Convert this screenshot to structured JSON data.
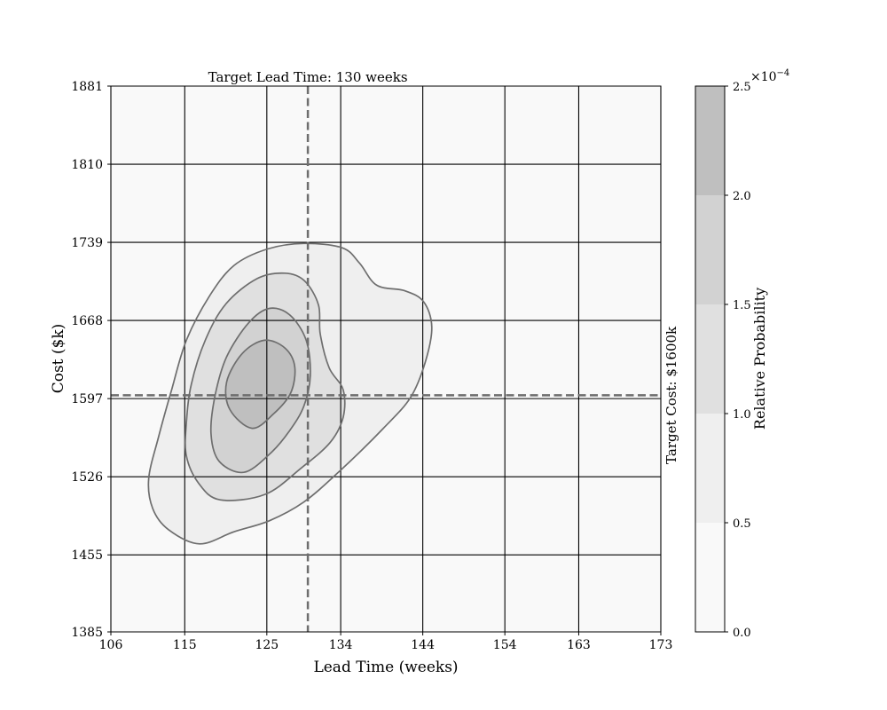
{
  "chart_data": {
    "type": "heatmap",
    "subtype": "filled-contour",
    "xlabel": "Lead Time (weeks)",
    "ylabel": "Cost ($k)",
    "x_ticks": [
      106,
      115,
      125,
      134,
      144,
      154,
      163,
      173
    ],
    "y_ticks": [
      1385,
      1455,
      1526,
      1597,
      1668,
      1739,
      1810,
      1881
    ],
    "xlim": [
      106,
      173
    ],
    "ylim": [
      1385,
      1881
    ],
    "grid": true,
    "grid_color": "#000000",
    "contour_line_color": "#6e6e6e",
    "colorbar": {
      "label": "Relative Probability",
      "levels": [
        0.0,
        0.5,
        1.0,
        1.5,
        2.0,
        2.5
      ],
      "tick_labels": [
        "0.0",
        "0.5",
        "1.0",
        "1.5",
        "2.0",
        "2.5"
      ],
      "scale_label": "×10",
      "scale_exponent": "−4",
      "colors": [
        "#f9f9f9",
        "#efefef",
        "#e0e0e0",
        "#d2d2d2",
        "#bfbfbf"
      ]
    },
    "reference_lines": [
      {
        "orientation": "vertical",
        "value": 130,
        "label": "Target Lead Time: 130 weeks",
        "color": "#6e6e6e",
        "style": "dashed"
      },
      {
        "orientation": "horizontal",
        "value": 1600,
        "label": "Target Cost: $1600k",
        "color": "#6e6e6e",
        "style": "dashed"
      }
    ],
    "contours": [
      {
        "level": 0.5,
        "points": [
          [
            116.8,
            1465
          ],
          [
            113,
            1478
          ],
          [
            111.1,
            1497
          ],
          [
            110.6,
            1524
          ],
          [
            111.8,
            1562
          ],
          [
            113.4,
            1605
          ],
          [
            115.2,
            1650
          ],
          [
            118,
            1690
          ],
          [
            121,
            1718
          ],
          [
            125.1,
            1733
          ],
          [
            129.5,
            1738
          ],
          [
            134.2,
            1734
          ],
          [
            136.3,
            1720
          ],
          [
            138.4,
            1700
          ],
          [
            141.8,
            1695
          ],
          [
            144.1,
            1685
          ],
          [
            145.1,
            1662
          ],
          [
            144.3,
            1630
          ],
          [
            142.5,
            1598
          ],
          [
            139.2,
            1570
          ],
          [
            134,
            1532
          ],
          [
            129.5,
            1503
          ],
          [
            125.3,
            1486
          ],
          [
            121,
            1476
          ]
        ]
      },
      {
        "level": 1.0,
        "points": [
          [
            119.3,
            1505
          ],
          [
            116.7,
            1520
          ],
          [
            115.2,
            1545
          ],
          [
            115.2,
            1575
          ],
          [
            115.8,
            1610
          ],
          [
            117.5,
            1650
          ],
          [
            120,
            1683
          ],
          [
            123.8,
            1706
          ],
          [
            127.2,
            1711
          ],
          [
            129.6,
            1704
          ],
          [
            131.3,
            1682
          ],
          [
            131.5,
            1656
          ],
          [
            132.6,
            1625
          ],
          [
            134.3,
            1605
          ],
          [
            134.3,
            1580
          ],
          [
            132.7,
            1557
          ],
          [
            129.2,
            1534
          ],
          [
            124.8,
            1510
          ]
        ]
      },
      {
        "level": 1.5,
        "points": [
          [
            122.2,
            1530
          ],
          [
            119.2,
            1540
          ],
          [
            118.2,
            1565
          ],
          [
            118.7,
            1600
          ],
          [
            120.1,
            1635
          ],
          [
            122.8,
            1666
          ],
          [
            125.3,
            1679
          ],
          [
            127.8,
            1673
          ],
          [
            129.8,
            1650
          ],
          [
            130.3,
            1618
          ],
          [
            129.5,
            1590
          ],
          [
            127.7,
            1567
          ],
          [
            125.4,
            1547
          ]
        ]
      },
      {
        "level": 2.0,
        "points": [
          [
            123.2,
            1570
          ],
          [
            120.5,
            1587
          ],
          [
            120.1,
            1612
          ],
          [
            122,
            1638
          ],
          [
            124.7,
            1650
          ],
          [
            127.2,
            1643
          ],
          [
            128.4,
            1626
          ],
          [
            127.9,
            1602
          ],
          [
            125.8,
            1583
          ]
        ]
      }
    ]
  }
}
